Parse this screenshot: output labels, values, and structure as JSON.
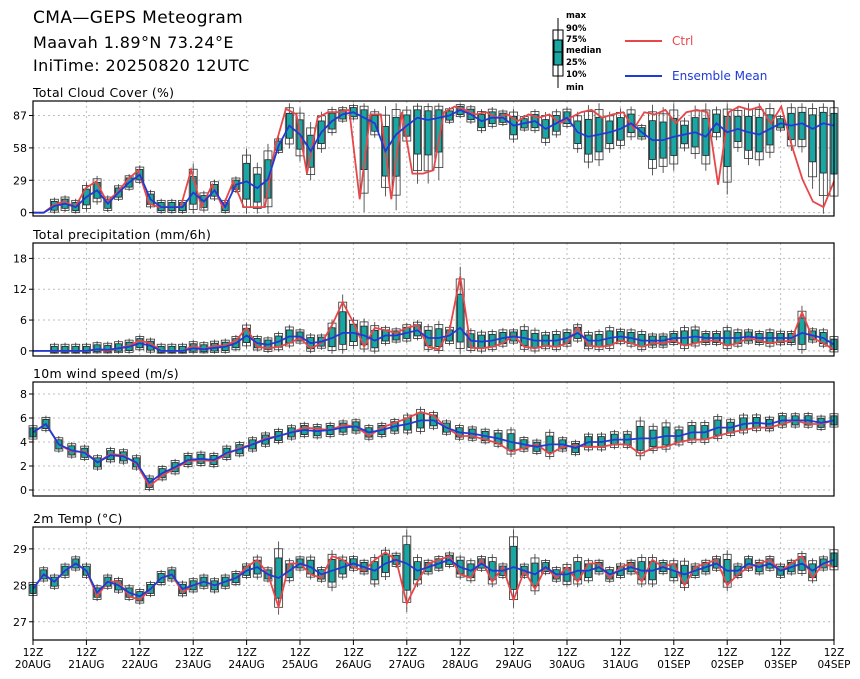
{
  "header": {
    "title": "CMA—GEPS Meteogram",
    "location": "Maavah 1.89°N 73.24°E",
    "init_time": "IniTime: 20250820 12UTC"
  },
  "legend": {
    "box_labels": [
      "max",
      "90%",
      "75%",
      "median",
      "25%",
      "10%",
      "min"
    ],
    "ctrl_label": "Ctrl",
    "mean_label": "Ensemble Mean",
    "ctrl_color": "#e8474a",
    "mean_color": "#1f3ad6",
    "box_color": "#1aa7a3"
  },
  "chart_data": {
    "type": "line",
    "x_ticks": [
      {
        "hour": "12Z",
        "date": "20AUG"
      },
      {
        "hour": "12Z",
        "date": "21AUG"
      },
      {
        "hour": "12Z",
        "date": "22AUG"
      },
      {
        "hour": "12Z",
        "date": "23AUG"
      },
      {
        "hour": "12Z",
        "date": "24AUG"
      },
      {
        "hour": "12Z",
        "date": "25AUG"
      },
      {
        "hour": "12Z",
        "date": "26AUG"
      },
      {
        "hour": "12Z",
        "date": "27AUG"
      },
      {
        "hour": "12Z",
        "date": "28AUG"
      },
      {
        "hour": "12Z",
        "date": "29AUG"
      },
      {
        "hour": "12Z",
        "date": "30AUG"
      },
      {
        "hour": "12Z",
        "date": "31AUG"
      },
      {
        "hour": "12Z",
        "date": "01SEP"
      },
      {
        "hour": "12Z",
        "date": "02SEP"
      },
      {
        "hour": "12Z",
        "date": "03SEP"
      },
      {
        "hour": "12Z",
        "date": "04SEP"
      }
    ],
    "panels": [
      {
        "title": "Total Cloud Cover (%)",
        "ylim": [
          -3,
          100
        ],
        "yticks": [
          0,
          29,
          58,
          87
        ],
        "mean": [
          0,
          0,
          6,
          8,
          5,
          14,
          20,
          8,
          18,
          27,
          34,
          12,
          5,
          5,
          5,
          18,
          10,
          20,
          5,
          25,
          28,
          22,
          30,
          60,
          78,
          70,
          55,
          72,
          82,
          88,
          90,
          85,
          80,
          55,
          70,
          78,
          85,
          83,
          85,
          87,
          92,
          88,
          82,
          85,
          85,
          78,
          80,
          82,
          75,
          80,
          85,
          72,
          68,
          70,
          72,
          75,
          80,
          72,
          65,
          65,
          68,
          70,
          72,
          68,
          80,
          72,
          75,
          72,
          70,
          75,
          80,
          78,
          80,
          75,
          80,
          78
        ],
        "ctrl": [
          0,
          0,
          7,
          10,
          5,
          22,
          28,
          10,
          18,
          30,
          38,
          8,
          5,
          5,
          5,
          38,
          5,
          25,
          5,
          28,
          5,
          5,
          5,
          60,
          93,
          88,
          35,
          85,
          90,
          90,
          92,
          12,
          88,
          88,
          12,
          90,
          35,
          35,
          38,
          90,
          95,
          92,
          88,
          90,
          85,
          88,
          82,
          88,
          85,
          88,
          80,
          85,
          90,
          92,
          85,
          88,
          90,
          75,
          90,
          88,
          92,
          80,
          90,
          92,
          90,
          25,
          90,
          95,
          92,
          95,
          80,
          95,
          60,
          30,
          10,
          5,
          28
        ]
      },
      {
        "title": "Total precipitation (mm/6h)",
        "ylim": [
          -1,
          21
        ],
        "yticks": [
          0,
          6,
          12,
          18
        ],
        "mean": [
          0,
          0,
          0,
          0,
          0,
          0,
          0.3,
          0.2,
          0.5,
          0.8,
          1.5,
          1,
          0,
          0,
          0,
          0.5,
          0.3,
          0.6,
          0.8,
          1.5,
          3,
          1.5,
          1.2,
          1.8,
          2.8,
          2.8,
          1.5,
          1.8,
          2.5,
          3.5,
          3.5,
          3,
          2,
          3,
          3,
          3.5,
          4,
          2.5,
          2.5,
          3,
          4.5,
          2,
          1.8,
          2,
          2.5,
          2.8,
          2.5,
          2,
          2,
          2,
          2.5,
          3.5,
          2,
          2,
          2.5,
          2.8,
          2.5,
          2,
          2,
          2,
          2.5,
          2.5,
          2.8,
          2.5,
          2.5,
          2.5,
          2.5,
          2.8,
          2.5,
          2.5,
          2.5,
          2.5,
          3.5,
          3,
          2.5,
          1.2
        ],
        "ctrl": [
          0,
          0,
          0,
          0,
          0,
          0,
          0.3,
          0,
          0.5,
          1,
          2,
          1.5,
          0,
          0,
          0,
          1,
          0.3,
          1,
          1,
          2,
          4.5,
          0.8,
          0.5,
          0.8,
          1.5,
          2.5,
          0.5,
          1.5,
          5,
          9.5,
          5.5,
          0.8,
          4.5,
          4,
          3.5,
          4.5,
          5,
          0.8,
          0.3,
          4,
          14.5,
          0.6,
          0.5,
          0.8,
          1.5,
          3,
          0.8,
          0.5,
          1,
          0.8,
          1.5,
          4.5,
          1,
          0.8,
          1,
          2,
          1.5,
          0.8,
          1.5,
          1.5,
          2,
          1,
          1.5,
          2,
          2,
          1,
          1.5,
          2.5,
          2,
          1.5,
          1.8,
          2,
          7.5,
          2.5,
          1.5,
          0.2
        ]
      },
      {
        "title": "10m wind speed (m/s)",
        "ylim": [
          -0.5,
          9
        ],
        "yticks": [
          0,
          2,
          4,
          6,
          8
        ],
        "mean": [
          4.8,
          5.5,
          3.8,
          3.3,
          3.1,
          2.3,
          2.9,
          2.8,
          2.3,
          0.6,
          1.4,
          1.9,
          2.5,
          2.6,
          2.5,
          3.1,
          3.4,
          3.8,
          4.2,
          4.5,
          4.8,
          5,
          4.9,
          5,
          5.2,
          5.3,
          4.8,
          5,
          5.3,
          5.5,
          5.8,
          5.8,
          5.2,
          4.8,
          4.7,
          4.5,
          4.3,
          4,
          3.8,
          3.6,
          3.8,
          3.8,
          3.5,
          4,
          4,
          4.2,
          4.2,
          4.3,
          4.3,
          4.5,
          4.5,
          4.8,
          4.8,
          5.2,
          5.2,
          5.5,
          5.6,
          5.5,
          5.8,
          5.8,
          5.8,
          5.6,
          5.8
        ],
        "ctrl": [
          4.8,
          5.5,
          3.8,
          3.2,
          3.2,
          2.3,
          3,
          2.9,
          2.2,
          0.3,
          1.2,
          1.8,
          2.4,
          2.5,
          2.4,
          3,
          3.5,
          3.8,
          4.3,
          4.5,
          4.8,
          5.2,
          5.1,
          5,
          5.4,
          5.3,
          4.5,
          5.2,
          5.6,
          6,
          6.5,
          6.2,
          5.2,
          4.5,
          4.5,
          4.2,
          3.9,
          3.2,
          3.5,
          3.8,
          3,
          3.6,
          3.7,
          3.6,
          3.6,
          3.8,
          3.8,
          3,
          3.5,
          3.6,
          4,
          4.2,
          4.2,
          4.5,
          4.8,
          5,
          5.2,
          5.2,
          5.5,
          5.8,
          5.5,
          5.5,
          5.8
        ]
      },
      {
        "title": "2m Temp (°C)",
        "ylim": [
          26.5,
          29.6
        ],
        "yticks": [
          27,
          28,
          29
        ],
        "mean": [
          27.9,
          28.3,
          28.1,
          28.4,
          28.6,
          28.4,
          27.8,
          28.1,
          28,
          27.8,
          27.7,
          27.9,
          28.2,
          28.3,
          27.9,
          28,
          28.1,
          28,
          28.1,
          28.2,
          28.4,
          28.5,
          28.3,
          28.2,
          28.4,
          28.6,
          28.5,
          28.3,
          28.4,
          28.5,
          28.6,
          28.5,
          28.4,
          28.6,
          28.7,
          28.6,
          28.4,
          28.5,
          28.6,
          28.7,
          28.5,
          28.4,
          28.6,
          28.4,
          28.4,
          28.5,
          28.4,
          28.3,
          28.5,
          28.3,
          28.3,
          28.4,
          28.4,
          28.5,
          28.3,
          28.4,
          28.5,
          28.4,
          28.4,
          28.5,
          28.4,
          28.3,
          28.4,
          28.5,
          28.6,
          28.4,
          28.4,
          28.6,
          28.5,
          28.6,
          28.4,
          28.5,
          28.6,
          28.4,
          28.6,
          28.7
        ],
        "ctrl": [
          27.9,
          28.3,
          28.1,
          28.4,
          28.6,
          28.4,
          27.7,
          28.1,
          28.1,
          27.7,
          27.6,
          27.9,
          28.2,
          28.3,
          27.8,
          28,
          28.1,
          28,
          28.1,
          28.2,
          28.5,
          28.7,
          28.3,
          27.4,
          28.6,
          28.6,
          28.3,
          28.2,
          28.8,
          28.7,
          28.5,
          28.4,
          28.7,
          28.9,
          28.7,
          27.5,
          28.1,
          28.6,
          28.7,
          28.8,
          28.3,
          28.2,
          28.7,
          28.1,
          28.5,
          27.6,
          28.4,
          27.9,
          28.5,
          28.2,
          28.5,
          28.1,
          28.6,
          28.6,
          28.2,
          28.5,
          28.6,
          28.1,
          28.7,
          28.5,
          28.6,
          28,
          28.5,
          28.6,
          28.7,
          28,
          28.3,
          28.5,
          28.6,
          28.7,
          28.4,
          28.6,
          28.8,
          28.2,
          28.6,
          28.5
        ]
      }
    ]
  }
}
